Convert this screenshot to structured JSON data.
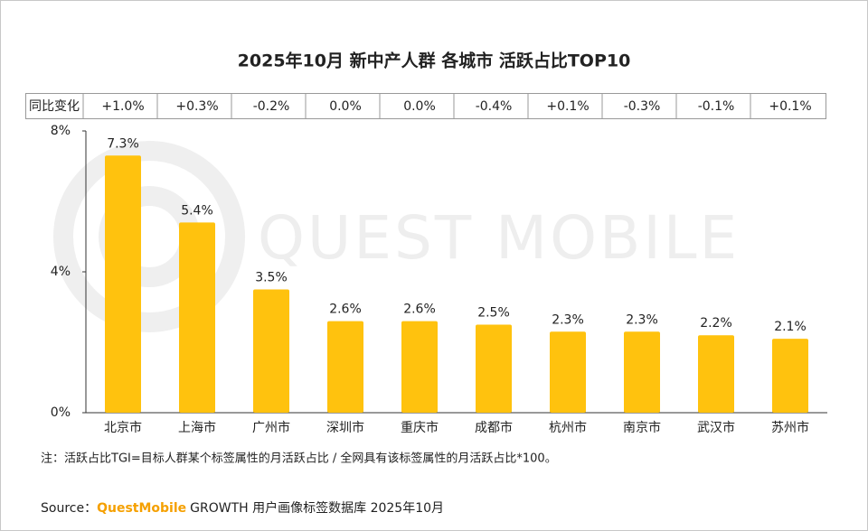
{
  "chart_data": {
    "type": "bar",
    "title": "2025年10月 新中产人群 各城市 活跃占比TOP10",
    "categories": [
      "北京市",
      "上海市",
      "广州市",
      "深圳市",
      "重庆市",
      "成都市",
      "杭州市",
      "南京市",
      "武汉市",
      "苏州市"
    ],
    "values": [
      7.3,
      5.4,
      3.5,
      2.6,
      2.6,
      2.5,
      2.3,
      2.3,
      2.2,
      2.1
    ],
    "value_labels": [
      "7.3%",
      "5.4%",
      "3.5%",
      "2.6%",
      "2.6%",
      "2.5%",
      "2.3%",
      "2.3%",
      "2.2%",
      "2.1%"
    ],
    "color": "#FFC20E",
    "ylim": [
      0,
      8
    ],
    "yticks": [
      {
        "value": 0,
        "label": "0%"
      },
      {
        "value": 4,
        "label": "4%"
      },
      {
        "value": 8,
        "label": "8%"
      }
    ],
    "grid": false,
    "yoy_label": "同比变化",
    "yoy": [
      "+1.0%",
      "+0.3%",
      "-0.2%",
      "0.0%",
      "0.0%",
      "-0.4%",
      "+0.1%",
      "-0.3%",
      "-0.1%",
      "+0.1%"
    ]
  },
  "watermark": "QUEST MOBILE",
  "note": "注：活跃占比TGI=目标人群某个标签属性的月活跃占比 / 全网具有该标签属性的月活跃占比*100。",
  "source": {
    "label": "Source：",
    "brand": "QuestMobile",
    "text": "GROWTH 用户画像标签数据库 2025年10月"
  }
}
